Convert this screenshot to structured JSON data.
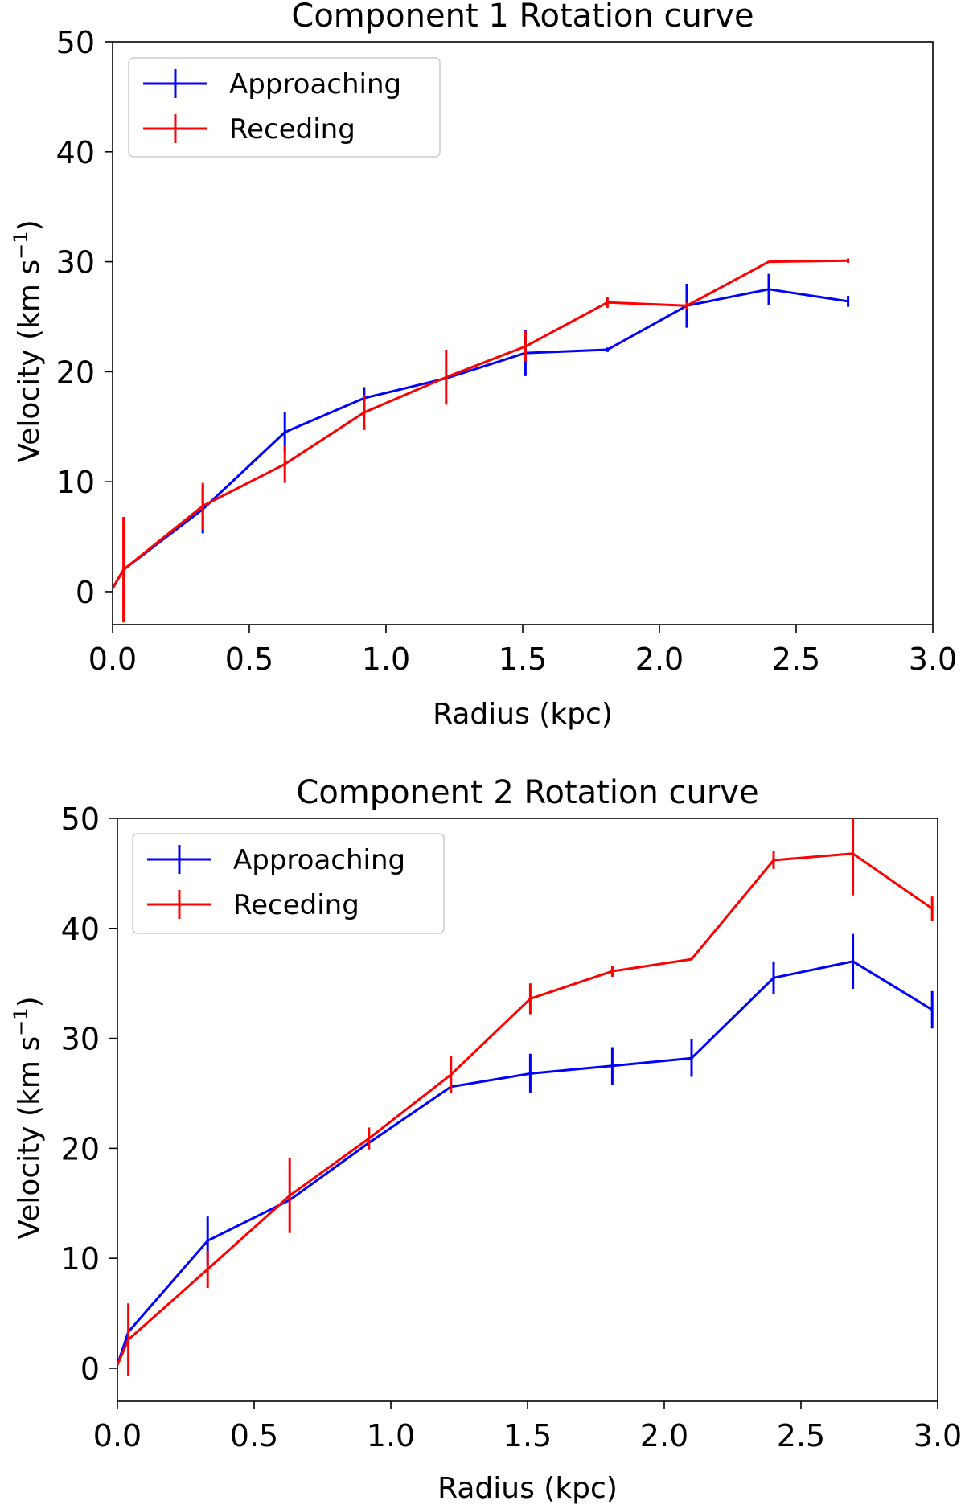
{
  "chart_data": [
    {
      "type": "line",
      "title": "Component 1 Rotation curve",
      "xlabel": "Radius (kpc)",
      "ylabel": "Velocity (km s",
      "ylabel_sup": "−1",
      "ylabel_close": ")",
      "xlim": [
        0.0,
        3.0
      ],
      "ylim": [
        -3,
        50
      ],
      "xticks": [
        0.0,
        0.5,
        1.0,
        1.5,
        2.0,
        2.5,
        3.0
      ],
      "xtick_labels": [
        "0.0",
        "0.5",
        "1.0",
        "1.5",
        "2.0",
        "2.5",
        "3.0"
      ],
      "yticks": [
        0,
        10,
        20,
        30,
        40,
        50
      ],
      "ytick_labels": [
        "0",
        "10",
        "20",
        "30",
        "40",
        "50"
      ],
      "legend_position": "top-left",
      "series": [
        {
          "name": "Approaching",
          "color": "#0000ff",
          "x": [
            0.0,
            0.04,
            0.33,
            0.63,
            0.92,
            1.22,
            1.51,
            1.81,
            2.1,
            2.4,
            2.69
          ],
          "y": [
            0.3,
            2.0,
            7.5,
            14.5,
            17.6,
            19.4,
            21.7,
            22.0,
            26.0,
            27.5,
            26.4
          ],
          "yerr": [
            0,
            0,
            2.2,
            1.8,
            1.0,
            0,
            2.1,
            0.2,
            2.0,
            1.4,
            0.5
          ]
        },
        {
          "name": "Receding",
          "color": "#ff0000",
          "x": [
            0.0,
            0.04,
            0.33,
            0.63,
            0.92,
            1.22,
            1.51,
            1.81,
            2.1,
            2.4,
            2.69
          ],
          "y": [
            0.3,
            2.0,
            7.8,
            11.6,
            16.3,
            19.5,
            22.3,
            26.3,
            26.0,
            30.0,
            30.1
          ],
          "yerr": [
            0,
            4.8,
            2.1,
            1.7,
            1.6,
            2.5,
            1.4,
            0.5,
            0.3,
            0,
            0.2
          ]
        }
      ]
    },
    {
      "type": "line",
      "title": "Component 2 Rotation curve",
      "xlabel": "Radius (kpc)",
      "ylabel": "Velocity (km s",
      "ylabel_sup": "−1",
      "ylabel_close": ")",
      "xlim": [
        0.0,
        3.0
      ],
      "ylim": [
        -3,
        50
      ],
      "xticks": [
        0.0,
        0.5,
        1.0,
        1.5,
        2.0,
        2.5,
        3.0
      ],
      "xtick_labels": [
        "0.0",
        "0.5",
        "1.0",
        "1.5",
        "2.0",
        "2.5",
        "3.0"
      ],
      "yticks": [
        0,
        10,
        20,
        30,
        40,
        50
      ],
      "ytick_labels": [
        "0",
        "10",
        "20",
        "30",
        "40",
        "50"
      ],
      "legend_position": "top-left",
      "series": [
        {
          "name": "Approaching",
          "color": "#0000ff",
          "x": [
            0.0,
            0.04,
            0.33,
            0.63,
            0.92,
            1.22,
            1.51,
            1.81,
            2.1,
            2.4,
            2.69,
            2.98
          ],
          "y": [
            0.3,
            3.3,
            11.6,
            15.3,
            20.5,
            25.6,
            26.8,
            27.5,
            28.2,
            35.5,
            37.0,
            32.6
          ],
          "yerr": [
            0,
            0,
            2.2,
            0,
            0,
            0,
            1.8,
            1.7,
            1.7,
            1.5,
            2.5,
            1.7
          ]
        },
        {
          "name": "Receding",
          "color": "#ff0000",
          "x": [
            0.0,
            0.04,
            0.33,
            0.63,
            0.92,
            1.22,
            1.51,
            1.81,
            2.1,
            2.4,
            2.69,
            2.98
          ],
          "y": [
            0.3,
            2.6,
            9.0,
            15.7,
            20.9,
            26.7,
            33.6,
            36.1,
            37.2,
            46.2,
            46.8,
            41.8
          ],
          "yerr": [
            0,
            3.3,
            1.7,
            3.4,
            1.0,
            1.7,
            1.4,
            0.5,
            0,
            0.8,
            3.8,
            1.1
          ]
        }
      ]
    }
  ]
}
